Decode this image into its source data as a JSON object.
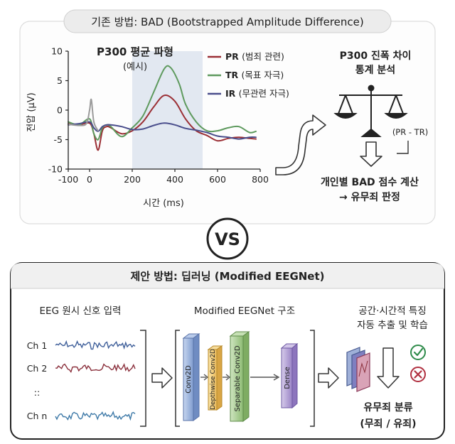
{
  "top_panel": {
    "title": "기존 방법: BAD (Bootstrapped Amplitude Difference)",
    "chart_data": {
      "type": "line",
      "title": "P300 평균 파형",
      "subtitle": "(예시)",
      "xlabel": "시간 (ms)",
      "ylabel": "전압 (μV)",
      "xlim": [
        -100,
        800
      ],
      "ylim": [
        -10,
        10
      ],
      "x_ticks": [
        "-100",
        "0",
        "200",
        "400",
        "600",
        "800"
      ],
      "y_ticks": [
        "10",
        "5",
        "0",
        "-5",
        "-10"
      ],
      "highlight_range": [
        200,
        530
      ],
      "grid": false,
      "legend_position": "top-right",
      "series": [
        {
          "name": "PR (범죄 관련)",
          "color": "#9b2f35",
          "x": [
            -100,
            -50,
            0,
            20,
            40,
            60,
            80,
            100,
            150,
            200,
            250,
            300,
            350,
            400,
            450,
            500,
            550,
            600,
            650,
            700,
            750,
            780
          ],
          "y": [
            -2.3,
            -2.5,
            -2.2,
            -4.0,
            -6.8,
            -3.5,
            -2.8,
            -3.0,
            -4.0,
            -3.5,
            -2.0,
            0.5,
            2.5,
            1.5,
            -1.5,
            -3.5,
            -4.3,
            -5.2,
            -4.8,
            -4.6,
            -4.8,
            -4.9
          ]
        },
        {
          "name": "TR (목표 자극)",
          "color": "#5e9a5e",
          "x": [
            -100,
            -50,
            0,
            20,
            40,
            60,
            80,
            100,
            150,
            200,
            250,
            300,
            350,
            380,
            420,
            450,
            500,
            550,
            600,
            650,
            700,
            750,
            780
          ],
          "y": [
            -2.0,
            -2.5,
            -1.5,
            -4.0,
            -5.0,
            -3.0,
            -2.5,
            -2.8,
            -4.5,
            -3.0,
            -1.0,
            3.0,
            7.0,
            7.2,
            4.5,
            1.0,
            -2.0,
            -3.5,
            -3.5,
            -3.0,
            -2.8,
            -3.8,
            -3.6
          ]
        },
        {
          "name": "IR (무관련 자극)",
          "color": "#4a4e8c",
          "x": [
            -100,
            -50,
            0,
            20,
            40,
            60,
            80,
            100,
            150,
            200,
            250,
            300,
            350,
            400,
            450,
            500,
            550,
            600,
            650,
            700,
            750,
            780
          ],
          "y": [
            -2.5,
            -2.3,
            -2.0,
            -3.0,
            -3.6,
            -2.8,
            -2.5,
            -2.5,
            -2.8,
            -3.3,
            -3.2,
            -2.6,
            -2.2,
            -2.5,
            -3.1,
            -3.4,
            -3.8,
            -4.4,
            -4.6,
            -4.9,
            -4.6,
            -4.6
          ]
        },
        {
          "name": "",
          "color": "#9b9b9b",
          "x": [
            -100,
            -50,
            -15,
            0,
            8,
            20,
            40
          ],
          "y": [
            -2.4,
            -2.6,
            -2.3,
            0.0,
            1.8,
            -2.0,
            -3.5
          ]
        }
      ]
    },
    "analysis_title": [
      "P300 진폭 차이",
      "통계 분석"
    ],
    "difference_label": "(PR - TR)",
    "result_text": [
      "개인별 BAD 점수 계산",
      "→ 유무죄 판정"
    ]
  },
  "vs_label": "VS",
  "bottom_panel": {
    "title": "제안 방법: 딥러닝 (Modified EEGNet)",
    "input_title": "EEG 원시 신호 입력",
    "channels": [
      {
        "label": "Ch 1",
        "color": "#3f5f9a"
      },
      {
        "label": "Ch 2",
        "color": "#8a2f3b"
      },
      {
        "label": "Ch n",
        "color": "#3f7aa8"
      }
    ],
    "ellipsis": "::",
    "model_title": "Modified EEGNet 구조",
    "layers": [
      {
        "label": "Conv2D",
        "color": "#9fb7dd"
      },
      {
        "label": "Depthwise Conv2D",
        "color": "#f2cf7a"
      },
      {
        "label": "Separable Conv2D",
        "color": "#a9cf91"
      },
      {
        "label": "Dense",
        "color": "#b5a2d6"
      }
    ],
    "feature_title": [
      "공간·시간적 특징",
      "자동 추출 및 학습"
    ],
    "output_title": [
      "유무죄 분류",
      "(무죄 / 유죄)"
    ],
    "colors": {
      "check": "#2e8b4a",
      "cross": "#b03040"
    }
  }
}
